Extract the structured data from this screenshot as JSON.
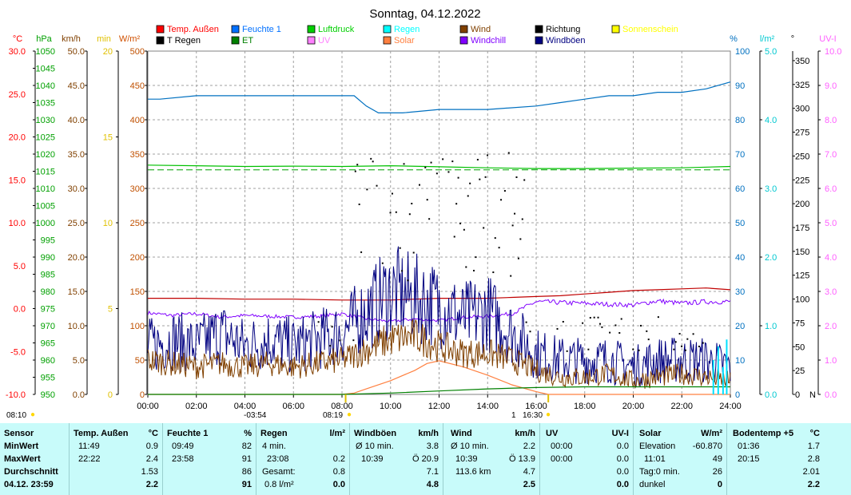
{
  "chart_data": {
    "type": "line",
    "title": "Sonntag, 04.12.2022",
    "x_ticks": [
      "00:00",
      "02:00",
      "04:00",
      "06:00",
      "08:00",
      "10:00",
      "12:00",
      "14:00",
      "16:00",
      "18:00",
      "20:00",
      "22:00",
      "24:00"
    ],
    "x_range_hours": [
      0,
      24
    ],
    "axes": {
      "temp": {
        "label": "°C",
        "ticks": [
          "30.0",
          "25.0",
          "20.0",
          "15.0",
          "10.0",
          "5.0",
          "0.0",
          "-5.0",
          "-10.0"
        ],
        "range": [
          -10,
          30
        ],
        "color": "#ff0000"
      },
      "pressure": {
        "label": "hPa",
        "ticks": [
          "1050",
          "1045",
          "1040",
          "1035",
          "1030",
          "1025",
          "1020",
          "1015",
          "1010",
          "1005",
          "1000",
          "995",
          "990",
          "985",
          "980",
          "975",
          "970",
          "965",
          "960",
          "955",
          "950"
        ],
        "range": [
          950,
          1050
        ],
        "color": "#00a000"
      },
      "wind": {
        "label": "km/h",
        "ticks": [
          "50.0",
          "45.0",
          "40.0",
          "35.0",
          "30.0",
          "25.0",
          "20.0",
          "15.0",
          "10.0",
          "5.0",
          "0.0"
        ],
        "range": [
          0,
          50
        ],
        "color": "#804000"
      },
      "sunshine": {
        "label": "min",
        "ticks": [
          "20",
          "15",
          "10",
          "5",
          "0"
        ],
        "range": [
          0,
          20
        ],
        "color": "#e0c000"
      },
      "solar": {
        "label": "W/m²",
        "ticks": [
          "500",
          "450",
          "400",
          "350",
          "300",
          "250",
          "200",
          "150",
          "100",
          "50",
          "0"
        ],
        "range": [
          0,
          500
        ],
        "color": "#d05000"
      },
      "humidity": {
        "label": "%",
        "ticks": [
          "100",
          "90",
          "80",
          "70",
          "60",
          "50",
          "40",
          "30",
          "20",
          "10",
          "0"
        ],
        "range": [
          0,
          100
        ],
        "color": "#0070c0"
      },
      "rain": {
        "label": "l/m²",
        "ticks": [
          "5.0",
          "4.0",
          "3.0",
          "2.0",
          "1.0",
          "0.0"
        ],
        "range": [
          0,
          5
        ],
        "color": "#00c8d0"
      },
      "direction": {
        "label": "°",
        "ticks": [
          "350",
          "325",
          "300",
          "275",
          "250",
          "225",
          "200",
          "175",
          "150",
          "125",
          "100",
          "75",
          "50",
          "25",
          "0"
        ],
        "range": [
          0,
          360
        ],
        "bottom_label": "N",
        "color": "#000000"
      },
      "uv": {
        "label": "UV-I",
        "ticks": [
          "10.0",
          "9.0",
          "8.0",
          "7.0",
          "6.0",
          "5.0",
          "4.0",
          "3.0",
          "2.0",
          "1.0",
          "0.0"
        ],
        "range": [
          0,
          10
        ],
        "color": "#ff60ff"
      }
    },
    "legend": [
      {
        "label": "Temp. Außen",
        "color": "#ff0000"
      },
      {
        "label": "Feuchte 1",
        "color": "#0070ff"
      },
      {
        "label": "Luftdruck",
        "color": "#00d000"
      },
      {
        "label": "Regen",
        "color": "#00ffff"
      },
      {
        "label": "Wind",
        "color": "#804000"
      },
      {
        "label": "Richtung",
        "color": "#000000"
      },
      {
        "label": "Sonnenschein",
        "color": "#ffff00"
      },
      {
        "label": "T Regen",
        "color": "#000000"
      },
      {
        "label": "ET",
        "color": "#008000"
      },
      {
        "label": "UV",
        "color": "#ff80ff"
      },
      {
        "label": "Solar",
        "color": "#ff8040"
      },
      {
        "label": "Windchill",
        "color": "#8000ff"
      },
      {
        "label": "Windböen",
        "color": "#000080"
      }
    ],
    "series": [
      {
        "name": "Temp. Außen",
        "axis": "temp",
        "color": "#c00000",
        "x": [
          0,
          2,
          4,
          6,
          8,
          9,
          10,
          11,
          12,
          13,
          14,
          15,
          16,
          17,
          18,
          19,
          20,
          21,
          22,
          23,
          24
        ],
        "y": [
          1.2,
          1.2,
          1.1,
          1.1,
          1.0,
          1.0,
          1.0,
          1.1,
          1.2,
          1.2,
          1.2,
          1.3,
          1.4,
          1.5,
          1.7,
          1.9,
          2.1,
          2.2,
          2.3,
          2.4,
          2.2
        ]
      },
      {
        "name": "Feuchte 1",
        "axis": "humidity",
        "color": "#0070c0",
        "x": [
          0,
          0.5,
          2,
          4,
          6,
          7.5,
          8.5,
          9.0,
          9.5,
          10.5,
          12,
          14,
          16,
          17,
          18,
          19,
          20,
          21,
          22,
          23,
          24
        ],
        "y": [
          86,
          86,
          87,
          87,
          87,
          87,
          87,
          84,
          82,
          82,
          83,
          83,
          84,
          85,
          86,
          87,
          87,
          88,
          88,
          89,
          91
        ]
      },
      {
        "name": "Luftdruck",
        "axis": "pressure",
        "color": "#00c000",
        "x": [
          0,
          2,
          4,
          6,
          8,
          10,
          12,
          14,
          16,
          18,
          20,
          22,
          24
        ],
        "y": [
          1016.8,
          1016.6,
          1016.4,
          1016.5,
          1016.4,
          1016.6,
          1016.3,
          1016.0,
          1015.8,
          1015.8,
          1015.9,
          1016.0,
          1016.4
        ]
      },
      {
        "name": "Windchill",
        "axis": "temp",
        "color": "#8000ff",
        "x": [
          0,
          1,
          2,
          3,
          4,
          5,
          6,
          7,
          8,
          9,
          10,
          11,
          12,
          13,
          14,
          15,
          16,
          20,
          21,
          22,
          23
        ],
        "y": [
          -0.5,
          -0.8,
          -0.6,
          -1.0,
          -0.8,
          -0.9,
          -1.0,
          -0.9,
          -0.6,
          -1.2,
          -1.5,
          -1.2,
          -1.4,
          -1.0,
          -0.9,
          -0.6,
          0.8,
          0.4,
          0.9,
          0.6,
          0.8
        ]
      },
      {
        "name": "Solar",
        "axis": "solar",
        "color": "#ff8040",
        "x": [
          0,
          8.0,
          8.5,
          9.0,
          10,
          11,
          11.5,
          12,
          13,
          14,
          15,
          16.0,
          16.5,
          24
        ],
        "y": [
          0,
          0,
          2,
          8,
          20,
          35,
          45,
          49,
          40,
          28,
          14,
          4,
          0,
          0
        ]
      },
      {
        "name": "Windböen",
        "axis": "wind",
        "color": "#000080",
        "x": [
          0,
          1,
          2,
          3,
          4,
          5,
          6,
          7,
          8,
          9,
          10,
          11,
          12,
          13,
          14,
          15,
          16,
          17,
          18,
          19,
          20,
          21,
          22,
          23,
          24
        ],
        "y": [
          7,
          8,
          7,
          9,
          7,
          8,
          7,
          8,
          9,
          12,
          15,
          14,
          13,
          11,
          12,
          9,
          6,
          5,
          5,
          5,
          4,
          5,
          5,
          5,
          4
        ]
      },
      {
        "name": "Wind",
        "axis": "wind",
        "color": "#804000",
        "x": [
          0,
          1,
          2,
          3,
          4,
          5,
          6,
          7,
          8,
          9,
          10,
          11,
          12,
          13,
          14,
          15,
          16,
          17,
          18,
          19,
          20,
          21,
          22,
          23,
          24
        ],
        "y": [
          5,
          4.5,
          4,
          4.5,
          4,
          4.5,
          4,
          4.5,
          5,
          6.5,
          8,
          8.5,
          7,
          6,
          6,
          5,
          3.5,
          2.5,
          2.5,
          3,
          2,
          2.5,
          3,
          2.5,
          2
        ]
      },
      {
        "name": "ET",
        "axis": "rain",
        "color": "#008000",
        "x": [
          0,
          8,
          10,
          12,
          14,
          16,
          18,
          24
        ],
        "y": [
          0,
          0,
          0.02,
          0.05,
          0.08,
          0.1,
          0.11,
          0.11
        ]
      }
    ],
    "annotations": {
      "sunrise": "08:10",
      "moonset": "-03:54",
      "time_819": "08:19",
      "moonrise_symbol": "1",
      "sunset": "16:30"
    }
  },
  "summary": {
    "sensor": {
      "header": "Sensor",
      "rows": [
        "MinWert",
        "MaxWert",
        "Durchschnitt",
        "04.12. 23:59"
      ]
    },
    "temp": {
      "header": "Temp. Außen",
      "unit": "°C",
      "min_time": "11:49",
      "min": "0.9",
      "max_time": "22:22",
      "max": "2.4",
      "avg": "1.53",
      "current": "2.2"
    },
    "humidity": {
      "header": "Feuchte 1",
      "unit": "%",
      "min_time": "09:49",
      "min": "82",
      "max_time": "23:58",
      "max": "91",
      "avg": "86",
      "current": "91"
    },
    "rain": {
      "header": "Regen",
      "unit": "l/m²",
      "r1_label": "4 min.",
      "r1_val": "",
      "r2_label": "23:08",
      "r2_val": "0.2",
      "r3_label": "Gesamt:",
      "r3_val": "0.8",
      "r4_label": "0.8 l/m²",
      "r4_val": "0.0"
    },
    "gusts": {
      "header": "Windböen",
      "unit": "km/h",
      "r1_label": "Ø 10 min.",
      "r1_val": "3.8",
      "r2_label": "10:39",
      "r2_val": "Ö 20.9",
      "r3_val": "7.1",
      "current": "4.8"
    },
    "wind": {
      "header": "Wind",
      "unit": "km/h",
      "r1_label": "Ø 10 min.",
      "r1_val": "2.2",
      "r2_label": "10:39",
      "r2_val": "Ö 13.9",
      "r3_label": "113.6 km",
      "r3_val": "4.7",
      "current": "2.5"
    },
    "uv": {
      "header": "UV",
      "unit": "UV-I",
      "r1_label": "00:00",
      "r1_val": "0.0",
      "r2_label": "00:00",
      "r2_val": "0.0",
      "r3_val": "0.0",
      "current": "0.0"
    },
    "solar": {
      "header": "Solar",
      "unit": "W/m²",
      "r1_label": "Elevation",
      "r1_val": "-60.870",
      "r2_label": "11:01",
      "r2_val": "49",
      "r3_label": "Tag:0 min.",
      "r3_val": "26",
      "r4_label": "dunkel",
      "current": "0"
    },
    "soil": {
      "header": "Bodentemp +5",
      "unit": "°C",
      "min_time": "01:36",
      "min": "1.7",
      "max_time": "20:15",
      "max": "2.8",
      "avg": "2.01",
      "current": "2.2"
    }
  }
}
